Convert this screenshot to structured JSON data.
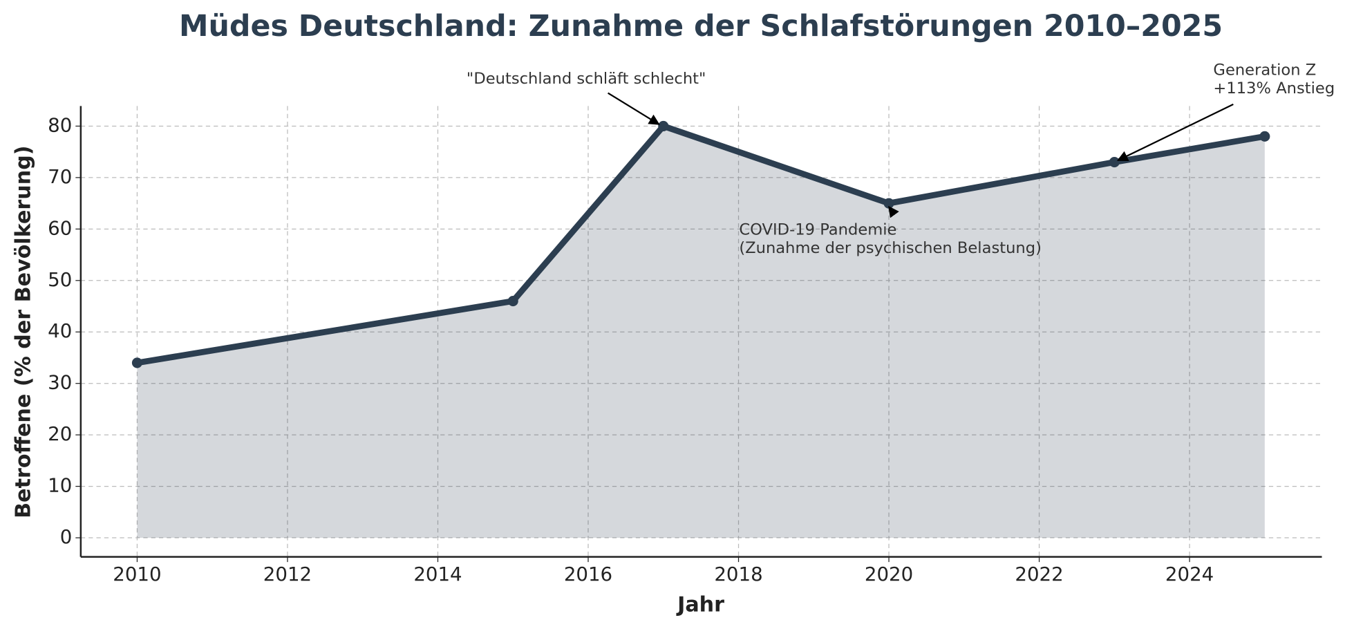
{
  "chart_data": {
    "type": "line",
    "title": "Müdes Deutschland: Zunahme der Schlafstörungen 2010–2025",
    "x_label": "Jahr",
    "y_label": "Betroffene (% der Bevölkerung)",
    "x": [
      2010,
      2015,
      2017,
      2020,
      2023,
      2025
    ],
    "values": [
      34,
      46,
      80,
      65,
      73,
      78
    ],
    "color": "#2c3e50",
    "fill_area": true,
    "grid": true,
    "xlim": [
      2009.25,
      2025.76
    ],
    "ylim": [
      -3.7,
      83.9
    ],
    "xticks": [
      2010,
      2012,
      2014,
      2016,
      2018,
      2020,
      2022,
      2024
    ],
    "yticks": [
      0,
      10,
      20,
      30,
      40,
      50,
      60,
      70,
      80
    ],
    "annotations": [
      {
        "text": [
          "\"Deutschland schläft schlecht\""
        ],
        "x": 2017,
        "y": 80
      },
      {
        "text": [
          "COVID-19 Pandemie",
          "(Zunahme der psychischen Belastung)"
        ],
        "x": 2020,
        "y": 65
      },
      {
        "text": [
          "Generation Z",
          "+113% Anstieg"
        ],
        "x": 2023,
        "y": 73
      }
    ]
  }
}
